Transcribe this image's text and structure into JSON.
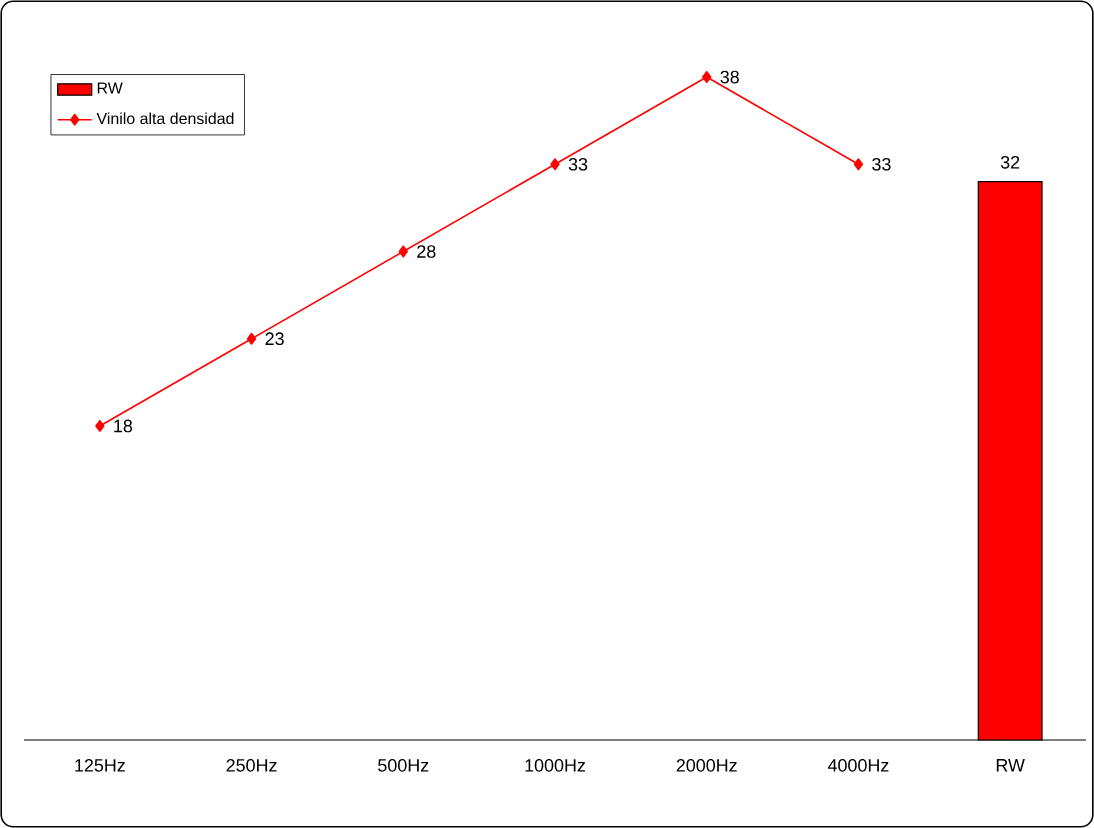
{
  "chart_data": {
    "type": "bar",
    "categories": [
      "125Hz",
      "250Hz",
      "500Hz",
      "1000Hz",
      "2000Hz",
      "4000Hz",
      "RW"
    ],
    "series": [
      {
        "name": "RW",
        "color": "#ff0000",
        "values": [
          null,
          null,
          null,
          null,
          null,
          null,
          32
        ]
      },
      {
        "name": "Vinilo alta densidad",
        "type": "line",
        "color": "#ff0000",
        "marker": "diamond",
        "values": [
          18,
          23,
          28,
          33,
          38,
          33,
          null
        ]
      }
    ],
    "tick_labels": "x",
    "data_labels": true,
    "legend": "top left",
    "grid": false
  }
}
